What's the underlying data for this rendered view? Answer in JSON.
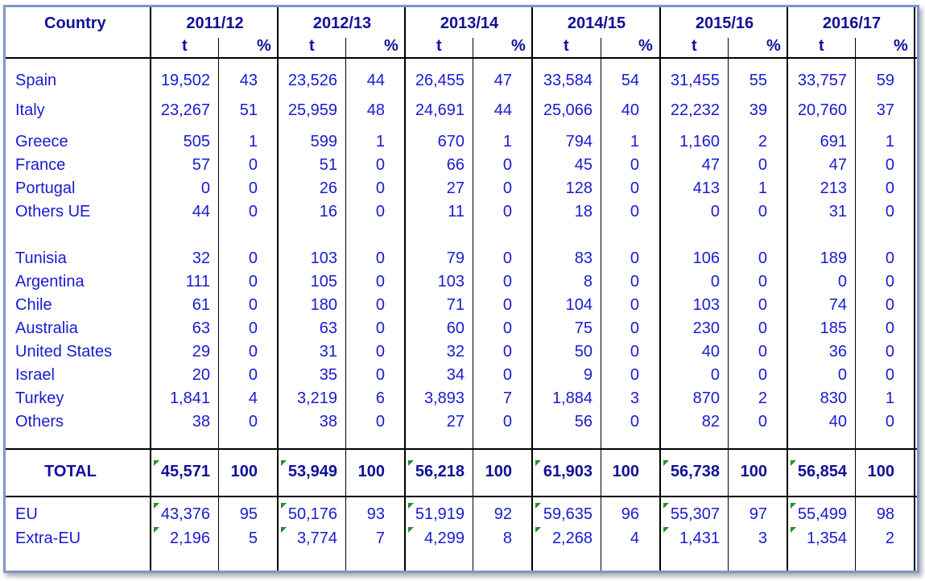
{
  "table": {
    "country_header": "Country",
    "years": [
      "2011/12",
      "2012/13",
      "2013/14",
      "2014/15",
      "2015/16",
      "2016/17"
    ],
    "unit_t": "t",
    "unit_pct": "%",
    "rows": [
      {
        "country": "Spain",
        "values": [
          [
            "19,502",
            "43"
          ],
          [
            "23,526",
            "44"
          ],
          [
            "26,455",
            "47"
          ],
          [
            "33,584",
            "54"
          ],
          [
            "31,455",
            "55"
          ],
          [
            "33,757",
            "59"
          ]
        ]
      },
      {
        "country": "Italy",
        "values": [
          [
            "23,267",
            "51"
          ],
          [
            "25,959",
            "48"
          ],
          [
            "24,691",
            "44"
          ],
          [
            "25,066",
            "40"
          ],
          [
            "22,232",
            "39"
          ],
          [
            "20,760",
            "37"
          ]
        ]
      },
      {
        "country": "Greece",
        "values": [
          [
            "505",
            "1"
          ],
          [
            "599",
            "1"
          ],
          [
            "670",
            "1"
          ],
          [
            "794",
            "1"
          ],
          [
            "1,160",
            "2"
          ],
          [
            "691",
            "1"
          ]
        ]
      },
      {
        "country": "France",
        "values": [
          [
            "57",
            "0"
          ],
          [
            "51",
            "0"
          ],
          [
            "66",
            "0"
          ],
          [
            "45",
            "0"
          ],
          [
            "47",
            "0"
          ],
          [
            "47",
            "0"
          ]
        ]
      },
      {
        "country": "Portugal",
        "values": [
          [
            "0",
            "0"
          ],
          [
            "26",
            "0"
          ],
          [
            "27",
            "0"
          ],
          [
            "128",
            "0"
          ],
          [
            "413",
            "1"
          ],
          [
            "213",
            "0"
          ]
        ]
      },
      {
        "country": "Others UE",
        "values": [
          [
            "44",
            "0"
          ],
          [
            "16",
            "0"
          ],
          [
            "11",
            "0"
          ],
          [
            "18",
            "0"
          ],
          [
            "0",
            "0"
          ],
          [
            "31",
            "0"
          ]
        ]
      },
      {
        "country": "Tunisia",
        "values": [
          [
            "32",
            "0"
          ],
          [
            "103",
            "0"
          ],
          [
            "79",
            "0"
          ],
          [
            "83",
            "0"
          ],
          [
            "106",
            "0"
          ],
          [
            "189",
            "0"
          ]
        ]
      },
      {
        "country": "Argentina",
        "values": [
          [
            "111",
            "0"
          ],
          [
            "105",
            "0"
          ],
          [
            "103",
            "0"
          ],
          [
            "8",
            "0"
          ],
          [
            "0",
            "0"
          ],
          [
            "0",
            "0"
          ]
        ]
      },
      {
        "country": "Chile",
        "values": [
          [
            "61",
            "0"
          ],
          [
            "180",
            "0"
          ],
          [
            "71",
            "0"
          ],
          [
            "104",
            "0"
          ],
          [
            "103",
            "0"
          ],
          [
            "74",
            "0"
          ]
        ]
      },
      {
        "country": "Australia",
        "values": [
          [
            "63",
            "0"
          ],
          [
            "63",
            "0"
          ],
          [
            "60",
            "0"
          ],
          [
            "75",
            "0"
          ],
          [
            "230",
            "0"
          ],
          [
            "185",
            "0"
          ]
        ]
      },
      {
        "country": "United States",
        "values": [
          [
            "29",
            "0"
          ],
          [
            "31",
            "0"
          ],
          [
            "32",
            "0"
          ],
          [
            "50",
            "0"
          ],
          [
            "40",
            "0"
          ],
          [
            "36",
            "0"
          ]
        ]
      },
      {
        "country": "Israel",
        "values": [
          [
            "20",
            "0"
          ],
          [
            "35",
            "0"
          ],
          [
            "34",
            "0"
          ],
          [
            "9",
            "0"
          ],
          [
            "0",
            "0"
          ],
          [
            "0",
            "0"
          ]
        ]
      },
      {
        "country": "Turkey",
        "values": [
          [
            "1,841",
            "4"
          ],
          [
            "3,219",
            "6"
          ],
          [
            "3,893",
            "7"
          ],
          [
            "1,884",
            "3"
          ],
          [
            "870",
            "2"
          ],
          [
            "830",
            "1"
          ]
        ]
      },
      {
        "country": "Others",
        "values": [
          [
            "38",
            "0"
          ],
          [
            "38",
            "0"
          ],
          [
            "27",
            "0"
          ],
          [
            "56",
            "0"
          ],
          [
            "82",
            "0"
          ],
          [
            "40",
            "0"
          ]
        ]
      }
    ],
    "total": {
      "label": "TOTAL",
      "values": [
        [
          "45,571",
          "100"
        ],
        [
          "53,949",
          "100"
        ],
        [
          "56,218",
          "100"
        ],
        [
          "61,903",
          "100"
        ],
        [
          "56,738",
          "100"
        ],
        [
          "56,854",
          "100"
        ]
      ]
    },
    "summary": [
      {
        "label": "EU",
        "values": [
          [
            "43,376",
            "95"
          ],
          [
            "50,176",
            "93"
          ],
          [
            "51,919",
            "92"
          ],
          [
            "59,635",
            "96"
          ],
          [
            "55,307",
            "97"
          ],
          [
            "55,499",
            "98"
          ]
        ]
      },
      {
        "label": "Extra-EU",
        "values": [
          [
            "2,196",
            "5"
          ],
          [
            "3,774",
            "7"
          ],
          [
            "4,299",
            "8"
          ],
          [
            "2,268",
            "4"
          ],
          [
            "1,431",
            "3"
          ],
          [
            "1,354",
            "2"
          ]
        ]
      }
    ],
    "colors": {
      "text": "#1a1ad0",
      "header": "#10109a",
      "grid": "#000000",
      "frame": "#7f95c9",
      "marker": "#1f8f2a"
    }
  }
}
